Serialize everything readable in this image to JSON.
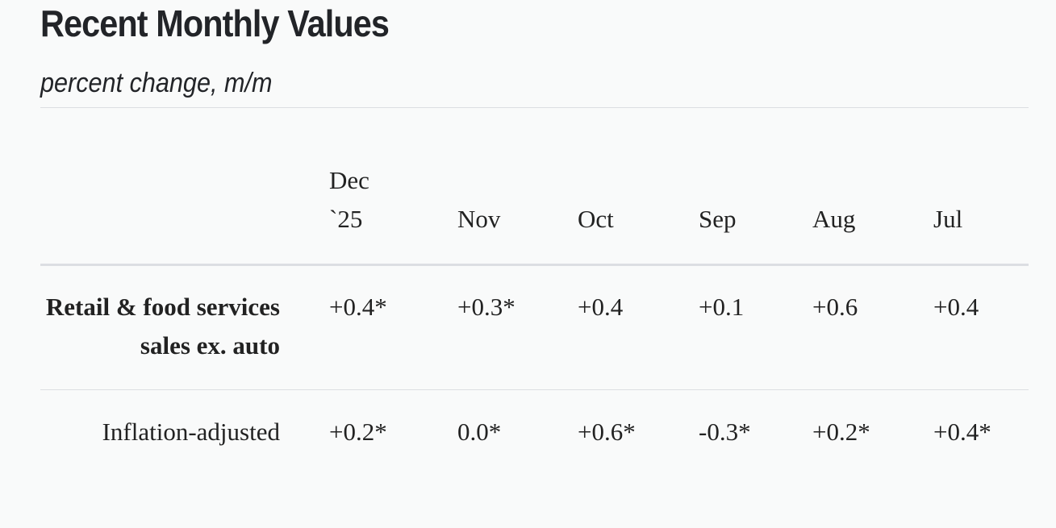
{
  "header": {
    "title": "Recent Monthly Values",
    "subtitle": "percent change, m/m"
  },
  "table": {
    "columns": [
      "Dec `25",
      "Nov",
      "Oct",
      "Sep",
      "Aug",
      "Jul"
    ],
    "rows": [
      {
        "label": "Retail & food services sales ex. auto",
        "cells": [
          "+0.4*",
          "+0.3*",
          "+0.4",
          "+0.1",
          "+0.6",
          "+0.4"
        ]
      },
      {
        "label": "Inflation-adjusted",
        "cells": [
          "+0.2*",
          "0.0*",
          "+0.6*",
          "-0.3*",
          "+0.2*",
          "+0.4*"
        ]
      }
    ]
  }
}
